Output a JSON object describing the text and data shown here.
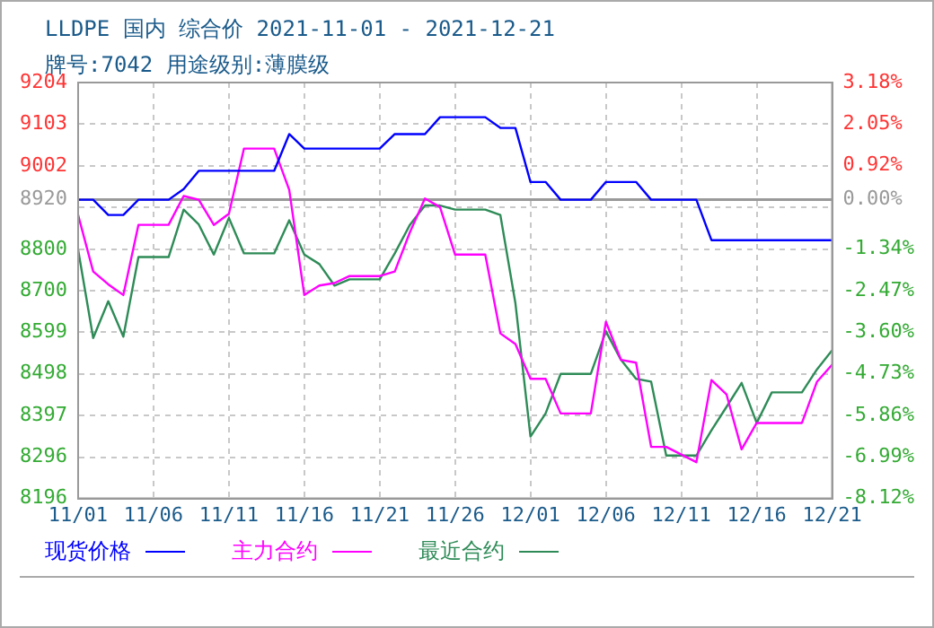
{
  "chart_data": {
    "type": "line",
    "title": "LLDPE 国内 综合价 2021-11-01 - 2021-12-21",
    "subtitle": "牌号:7042 用途级别:薄膜级",
    "x": [
      "2021-11-01",
      "2021-11-02",
      "2021-11-03",
      "2021-11-04",
      "2021-11-05",
      "2021-11-07",
      "2021-11-08",
      "2021-11-09",
      "2021-11-10",
      "2021-11-11",
      "2021-11-12",
      "2021-11-14",
      "2021-11-15",
      "2021-11-16",
      "2021-11-17",
      "2021-11-18",
      "2021-11-19",
      "2021-11-21",
      "2021-11-22",
      "2021-11-23",
      "2021-11-24",
      "2021-11-25",
      "2021-11-26",
      "2021-11-28",
      "2021-11-29",
      "2021-11-30",
      "2021-12-01",
      "2021-12-02",
      "2021-12-03",
      "2021-12-05",
      "2021-12-06",
      "2021-12-07",
      "2021-12-08",
      "2021-12-09",
      "2021-12-10",
      "2021-12-12",
      "2021-12-13",
      "2021-12-14",
      "2021-12-15",
      "2021-12-16",
      "2021-12-17",
      "2021-12-19",
      "2021-12-20",
      "2021-12-21"
    ],
    "series": [
      {
        "name": "现货价格",
        "color": "#0000ff",
        "values": [
          8920,
          8920,
          8883,
          8883,
          8920,
          8920,
          8946,
          8990,
          8990,
          8990,
          8990,
          8990,
          9079,
          9044,
          9044,
          9044,
          9044,
          9044,
          9079,
          9079,
          9079,
          9120,
          9120,
          9120,
          9094,
          9094,
          8963,
          8963,
          8920,
          8920,
          8963,
          8963,
          8963,
          8920,
          8920,
          8920,
          8822,
          8822,
          8822,
          8822,
          8822,
          8822,
          8822,
          8822
        ]
      },
      {
        "name": "主力合约",
        "color": "#ff00ff",
        "values": [
          8883,
          8746,
          8715,
          8689,
          8859,
          8859,
          8929,
          8920,
          8859,
          8886,
          9044,
          9044,
          8944,
          8689,
          8712,
          8718,
          8735,
          8735,
          8746,
          8841,
          8923,
          8902,
          8787,
          8787,
          8596,
          8570,
          8486,
          8486,
          8402,
          8402,
          8624,
          8532,
          8525,
          8321,
          8321,
          8284,
          8483,
          8448,
          8315,
          8379,
          8379,
          8379,
          8479,
          8520
        ]
      },
      {
        "name": "最近合约",
        "color": "#2e8b57",
        "values": [
          8799,
          8585,
          8674,
          8588,
          8781,
          8781,
          8896,
          8860,
          8787,
          8876,
          8790,
          8790,
          8870,
          8787,
          8764,
          8712,
          8727,
          8727,
          8790,
          8859,
          8906,
          8906,
          8896,
          8896,
          8883,
          8669,
          8346,
          8402,
          8498,
          8498,
          8601,
          8532,
          8486,
          8479,
          8300,
          8300,
          8361,
          8418,
          8476,
          8379,
          8453,
          8453,
          8509,
          8555
        ]
      }
    ],
    "xlim": [
      "2021-11-01",
      "2021-12-21"
    ],
    "xticks": [
      {
        "value": "2021-11-01",
        "label": "11/01"
      },
      {
        "value": "2021-11-06",
        "label": "11/06"
      },
      {
        "value": "2021-11-11",
        "label": "11/11"
      },
      {
        "value": "2021-11-16",
        "label": "11/16"
      },
      {
        "value": "2021-11-21",
        "label": "11/21"
      },
      {
        "value": "2021-11-26",
        "label": "11/26"
      },
      {
        "value": "2021-12-01",
        "label": "12/01"
      },
      {
        "value": "2021-12-06",
        "label": "12/06"
      },
      {
        "value": "2021-12-11",
        "label": "12/11"
      },
      {
        "value": "2021-12-16",
        "label": "12/16"
      },
      {
        "value": "2021-12-21",
        "label": "12/21"
      }
    ],
    "ylim": [
      8196,
      9204
    ],
    "yticks": [
      8196,
      8296,
      8397,
      8498,
      8599,
      8700,
      8800,
      {
        "value": 8901,
        "label": null
      },
      8920,
      9002,
      9103,
      9204
    ],
    "y2lim": [
      -8.12,
      3.18
    ],
    "y2ticks": [
      {
        "value": -8.12,
        "label": "-8.12%"
      },
      {
        "value": -6.99,
        "label": "-6.99%"
      },
      {
        "value": -5.86,
        "label": "-5.86%"
      },
      {
        "value": -4.73,
        "label": "-4.73%"
      },
      {
        "value": -3.6,
        "label": "-3.60%"
      },
      {
        "value": -2.47,
        "label": "-2.47%"
      },
      {
        "value": -1.34,
        "label": "-1.34%"
      },
      {
        "value": 0,
        "label": "0.00%"
      },
      {
        "value": 0.92,
        "label": "0.92%"
      },
      {
        "value": 2.05,
        "label": "2.05%"
      },
      {
        "value": 3.18,
        "label": "3.18%"
      }
    ],
    "ref_lines": [
      {
        "axis": "y",
        "value": 8920,
        "label": null,
        "color": "#999999",
        "line_style": "solid"
      }
    ],
    "grid": true,
    "legend": "bottom",
    "marker": "none",
    "line_style": "solid"
  }
}
